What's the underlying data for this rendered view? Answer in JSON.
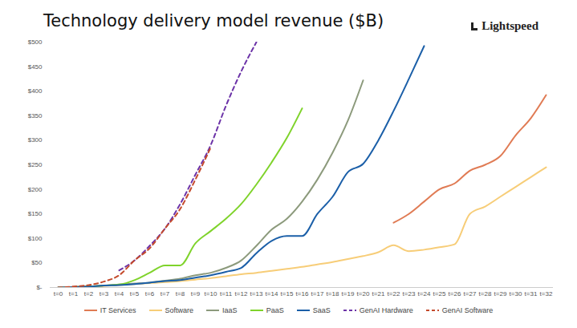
{
  "chart_data": {
    "type": "line",
    "title": "Technology delivery model revenue ($B)",
    "annotations": [
      "Lightspeed"
    ],
    "categories": [
      "t=0",
      "t=1",
      "t=2",
      "t=3",
      "t=4",
      "t=5",
      "t=6",
      "t=7",
      "t=8",
      "t=9",
      "t=10",
      "t=11",
      "t=12",
      "t=13",
      "t=14",
      "t=15",
      "t=16",
      "t=17",
      "t=18",
      "t=19",
      "t=20",
      "t=21",
      "t=22",
      "t=23",
      "t=24",
      "t=25",
      "t=26",
      "t=27",
      "t=28",
      "t=29",
      "t=30",
      "t=31",
      "t=32"
    ],
    "series": [
      {
        "name": "IT Services",
        "color": "#e07b54",
        "line_style": "solid",
        "values": [
          null,
          null,
          null,
          null,
          null,
          null,
          null,
          null,
          null,
          null,
          null,
          null,
          null,
          null,
          null,
          null,
          null,
          null,
          null,
          null,
          null,
          null,
          132,
          150,
          175,
          200,
          212,
          238,
          250,
          268,
          310,
          345,
          392
        ]
      },
      {
        "name": "Software",
        "color": "#f7cd78",
        "line_style": "solid",
        "values": [
          0,
          1,
          2,
          3,
          5,
          7,
          9,
          11,
          13,
          16,
          19,
          23,
          27,
          30,
          34,
          38,
          42,
          47,
          52,
          58,
          64,
          72,
          86,
          74,
          77,
          82,
          88,
          150,
          165,
          185,
          205,
          225,
          245
        ]
      },
      {
        "name": "IaaS",
        "color": "#8c9a7c",
        "line_style": "solid",
        "values": [
          0,
          1,
          2,
          4,
          6,
          8,
          10,
          14,
          18,
          25,
          30,
          40,
          55,
          85,
          118,
          140,
          175,
          220,
          275,
          340,
          422,
          null,
          null,
          null,
          null,
          null,
          null,
          null,
          null,
          null,
          null,
          null,
          null
        ]
      },
      {
        "name": "PaaS",
        "color": "#7fd32b",
        "line_style": "solid",
        "values": [
          0,
          1,
          2,
          4,
          6,
          15,
          30,
          45,
          45,
          90,
          115,
          140,
          170,
          210,
          255,
          305,
          365,
          null,
          null,
          null,
          null,
          null,
          null,
          null,
          null,
          null,
          null,
          null,
          null,
          null,
          null,
          null,
          null
        ]
      },
      {
        "name": "SaaS",
        "color": "#1b5fa8",
        "line_style": "solid",
        "values": [
          0,
          1,
          2,
          4,
          5,
          7,
          10,
          13,
          15,
          20,
          25,
          32,
          40,
          70,
          95,
          105,
          105,
          150,
          185,
          235,
          252,
          300,
          360,
          425,
          492,
          null,
          null,
          null,
          null,
          null,
          null,
          null,
          null
        ]
      },
      {
        "name": "GenAI Hardware",
        "color": "#6c33a8",
        "line_style": "dashed",
        "values": [
          null,
          null,
          null,
          null,
          35,
          55,
          85,
          120,
          170,
          230,
          290,
          370,
          440,
          500,
          null,
          null,
          null,
          null,
          null,
          null,
          null,
          null,
          null,
          null,
          null,
          null,
          null,
          null,
          null,
          null,
          null,
          null,
          null
        ]
      },
      {
        "name": "GenAI Software",
        "color": "#c44a2c",
        "line_style": "dashed",
        "values": [
          0,
          2,
          5,
          12,
          25,
          55,
          80,
          120,
          160,
          220,
          285,
          null,
          null,
          null,
          null,
          null,
          null,
          null,
          null,
          null,
          null,
          null,
          null,
          null,
          null,
          null,
          null,
          null,
          null,
          null,
          null,
          null,
          null
        ]
      }
    ],
    "ylim": [
      0,
      500
    ],
    "yticks": [
      {
        "value": 0,
        "label": "$-"
      },
      {
        "value": 50,
        "label": "$50"
      },
      {
        "value": 100,
        "label": "$100"
      },
      {
        "value": 150,
        "label": "$150"
      },
      {
        "value": 200,
        "label": "$200"
      },
      {
        "value": 250,
        "label": "$250"
      },
      {
        "value": 300,
        "label": "$300"
      },
      {
        "value": 350,
        "label": "$350"
      },
      {
        "value": 400,
        "label": "$400"
      },
      {
        "value": 450,
        "label": "$450"
      },
      {
        "value": 500,
        "label": "$500"
      }
    ],
    "grid": false,
    "legend": "bottom"
  }
}
